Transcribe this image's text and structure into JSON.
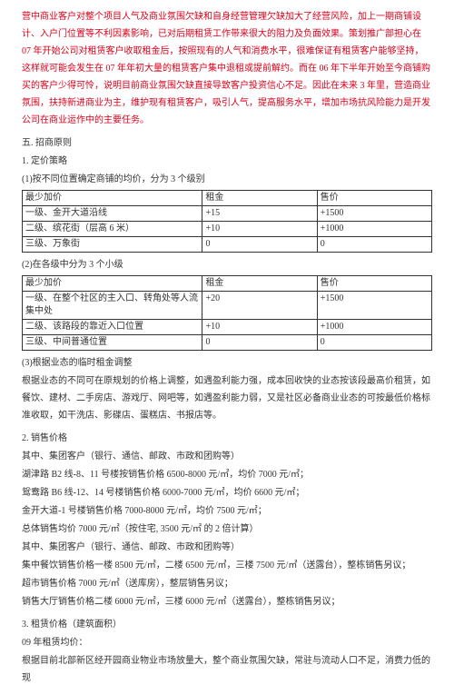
{
  "intro_red": "营中商业客户对整个项目人气及商业氛围欠缺和自身经营管理欠缺加大了经营风险，加上一期商铺设计、入户门位置等不利因素影响，已对后期租赁工作带来很大的阻力及负面效果。策划推广部担心在 07 年开始公司对租赁客户收取租金后，按照现有的人气和消费水平，很难保证有租赁客户能够坚持，这样就可能会发生在 07 年年初大量的租赁客户集中退租或提前解约。而在 06 年下半年开始至今商铺购买的客户少得可怜，说明目前商业氛围欠缺直接导致客户投资信心不足。因此在未来 3 年里，营造商业氛围，扶持新进商业为主，维护现有租赁客户，吸引人气，提高服务水平，增加市场抗风险能力是开发公司在商业运作中的主要任务。",
  "sec5_title": "五. 招商原则",
  "pricing_title": "1. 定价策略",
  "t1_caption": "(1)按不同位置确定商铺的均价，分为 3 个级别",
  "t1": {
    "h1": "最少加价",
    "h2": "租金",
    "h3": "售价",
    "r1c1": "一级、金开大道沿线",
    "r1c2": "+15",
    "r1c3": "+1500",
    "r2c1": "二级、缤花街（层高 6 米）",
    "r2c2": "+10",
    "r2c3": "+1000",
    "r3c1": "三级、万象街",
    "r3c2": "0",
    "r3c3": "0"
  },
  "t2_caption": "(2)在各级中分为 3 个小级",
  "t2": {
    "h1": "最少加价",
    "h2": "租金",
    "h3": "售价",
    "r1c1": "一级、在整个社区的主入口、转角处等人流集中处",
    "r1c2": "+20",
    "r1c3": "+1500",
    "r2c1": "二级、该路段的靠近入口位置",
    "r2c2": "+10",
    "r2c3": "+1000",
    "r3c1": "三级、中间普通位置",
    "r3c2": "0",
    "r3c3": "0"
  },
  "p3": "(3)根据业态的临时租金调整",
  "p3_body": "根据业态的不同可在原规划的价格上调整，如遇盈利能力强，成本回收快的业态按该段最高价租赁，如餐饮、建材、二手房店、游戏厅、网吧等，如遇盈利能力弱，又是社区必备商业业态的可按最低价格标准收取，如干洗店、影碟店、蛋糕店、书报店等。",
  "sale_title": "2. 销售价格",
  "sale_1": "其中、集团客户（银行、通信、邮政、市政和团购等）",
  "sale_2": "湖津路 B2 线-8、11 号楼按销售价格 6500-8000 元/㎡，均价 7000 元/㎡；",
  "sale_3": "鸳鸯路 B6 线-12、14 号楼销售价格 6000-7000 元/㎡，均价 6600 元/㎡；",
  "sale_4": "金开大道-1 号楼销售价格 7000-8000 元/㎡，均价 7500 元/㎡；",
  "sale_5": "总体销售均价 7000 元/㎡（按住宅, 3500 元/㎡ 的 2 倍计算）",
  "sale_6": "其中、集团客户（银行、通信、邮政、市政和团购等）",
  "sale_7": "集中餐饮销售价格一楼 8500 元/㎡，二楼 6500 元/㎡，三楼 7500 元/㎡（送露台），整栋销售另议；",
  "sale_8": "超市销售价格 7000 元/㎡（送库房），整层销售另议；",
  "sale_9": "销售大厅销售价格二楼 6000 元/㎡，三楼 6000 元/㎡（送露台），整栋销售另议；",
  "rent_title": "3. 租赁价格（建筑面积）",
  "rent_1": "09 年租赁均价：",
  "rent_2": "根据目前北部新区经开园商业物业市场放量大，整个商业氛围欠缺，常驻与流动人口不足，消费力低的现"
}
